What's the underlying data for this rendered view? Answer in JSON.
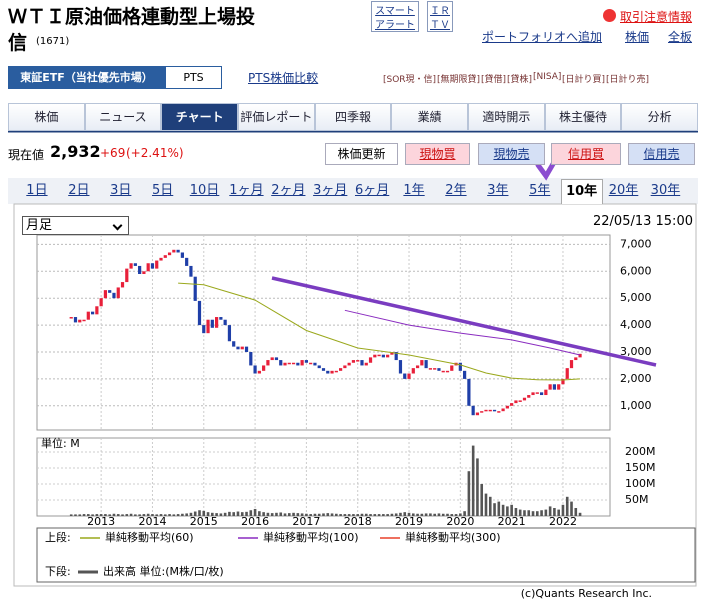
{
  "header": {
    "title_line1": "ＷＴＩ原油価格連動型上場投",
    "title_line2": "信",
    "code": "(1671)",
    "alert_button": [
      "スマート",
      "アラート"
    ],
    "ir_button": [
      "ＩＲ",
      "ＴＶ"
    ],
    "caution_link": "取引注意情報",
    "portfolio_link": "ポートフォリオへ追加",
    "links": [
      "株価",
      "全板"
    ]
  },
  "market_tabs": [
    "東証ETF（当社優先市場）",
    "PTS"
  ],
  "pts_compare": "PTS株価比較",
  "badges": [
    "[SOR現・信]",
    "[無期限貸]",
    "[貸借]",
    "[貸株]",
    "[NISA]",
    "[日計り買]",
    "[日計り売]"
  ],
  "nav_tabs": {
    "items": [
      "株価",
      "ニュース",
      "チャート",
      "評価レポート",
      "四季報",
      "業績",
      "適時開示",
      "株主優待",
      "分析"
    ],
    "active": 2
  },
  "quote": {
    "label": "現在値",
    "price": "2,932",
    "change": "+69",
    "change_pct": "(+2.41%)"
  },
  "buttons": [
    "株価更新",
    "現物買",
    "現物売",
    "信用買",
    "信用売"
  ],
  "periods": {
    "items": [
      "1日",
      "2日",
      "3日",
      "5日",
      "10日",
      "1ヶ月",
      "2ヶ月",
      "3ヶ月",
      "6ヶ月",
      "1年",
      "2年",
      "3年",
      "5年",
      "10年",
      "20年",
      "30年"
    ],
    "active": 13
  },
  "chart_data": {
    "type": "candlestick",
    "select": "月足",
    "timestamp": "22/05/13 15:00",
    "up_color": "#e8203a",
    "down_color": "#1f3fa8",
    "values": [
      4300,
      4100,
      4200,
      4200,
      4500,
      4400,
      4700,
      5000,
      5300,
      5200,
      5000,
      5400,
      5600,
      6100,
      6300,
      6200,
      5900,
      6000,
      6300,
      6100,
      6400,
      6500,
      6600,
      6700,
      6800,
      6700,
      6500,
      6200,
      5800,
      4900,
      4000,
      3700,
      4200,
      3900,
      4300,
      4200,
      4000,
      3400,
      3200,
      3100,
      3200,
      3000,
      2500,
      2200,
      2300,
      2500,
      2700,
      2800,
      2700,
      2500,
      2600,
      2600,
      2600,
      2500,
      2700,
      2600,
      2600,
      2500,
      2400,
      2300,
      2200,
      2300,
      2300,
      2400,
      2500,
      2600,
      2700,
      2700,
      2500,
      2600,
      2800,
      2900,
      2900,
      2800,
      2900,
      3000,
      2700,
      2200,
      2000,
      2200,
      2400,
      2500,
      2700,
      2400,
      2400,
      2400,
      2300,
      2300,
      2300,
      2500,
      2600,
      2300,
      2000,
      1000,
      650,
      750,
      800,
      850,
      850,
      800,
      800,
      900,
      1000,
      1100,
      1200,
      1200,
      1300,
      1400,
      1500,
      1500,
      1400,
      1600,
      1800,
      1600,
      1800,
      2000,
      2400,
      2700,
      2800,
      2932
    ],
    "xlim": [
      -8,
      126
    ],
    "xticks": [
      {
        "value": 7,
        "label": "2013"
      },
      {
        "value": 19,
        "label": "2014"
      },
      {
        "value": 31,
        "label": "2015"
      },
      {
        "value": 43,
        "label": "2016"
      },
      {
        "value": 55,
        "label": "2017"
      },
      {
        "value": 67,
        "label": "2018"
      },
      {
        "value": 79,
        "label": "2019"
      },
      {
        "value": 91,
        "label": "2020"
      },
      {
        "value": 103,
        "label": "2021"
      },
      {
        "value": 115,
        "label": "2022"
      }
    ],
    "ylim": [
      100,
      7350
    ],
    "yticks": [
      {
        "value": 1000,
        "label": "1,000"
      },
      {
        "value": 2000,
        "label": "2,000"
      },
      {
        "value": 3000,
        "label": "3,000"
      },
      {
        "value": 4000,
        "label": "4,000"
      },
      {
        "value": 5000,
        "label": "5,000"
      },
      {
        "value": 6000,
        "label": "6,000"
      },
      {
        "value": 7000,
        "label": "7,000"
      }
    ],
    "grid": true,
    "ma_lines": [
      {
        "name": "単純移動平均(60)",
        "color": "#9aa81c",
        "x": [
          25,
          31,
          43,
          55,
          67,
          79,
          91,
          97,
          103,
          109,
          115,
          119
        ],
        "values": [
          5560,
          5500,
          4930,
          3800,
          3150,
          2890,
          2520,
          2220,
          2030,
          1970,
          1960,
          2000
        ]
      },
      {
        "name": "単純移動平均(100)",
        "color": "#8a2cc0",
        "x": [
          64,
          79,
          91,
          103,
          112,
          119
        ],
        "values": [
          4550,
          4000,
          3700,
          3450,
          3150,
          2890
        ]
      },
      {
        "name": "単純移動平均(300)",
        "color": "#e8402a"
      }
    ],
    "volume": {
      "unit_label": "単位: M",
      "color": "#555555",
      "ylim": [
        0,
        225
      ],
      "yticks": [
        {
          "value": 50,
          "label": "50M"
        },
        {
          "value": 100,
          "label": "100M"
        },
        {
          "value": 150,
          "label": "150M"
        },
        {
          "value": 200,
          "label": "200M"
        }
      ],
      "values": [
        5,
        5,
        5,
        6,
        6,
        5,
        6,
        6,
        6,
        5,
        7,
        6,
        5,
        6,
        7,
        5,
        5,
        6,
        7,
        6,
        5,
        6,
        5,
        6,
        5,
        6,
        7,
        8,
        10,
        14,
        18,
        16,
        12,
        10,
        9,
        8,
        10,
        13,
        12,
        14,
        12,
        13,
        18,
        22,
        15,
        12,
        10,
        9,
        10,
        11,
        8,
        9,
        10,
        9,
        8,
        7,
        6,
        7,
        7,
        8,
        9,
        8,
        7,
        6,
        6,
        6,
        6,
        6,
        7,
        7,
        6,
        6,
        6,
        6,
        6,
        7,
        8,
        10,
        12,
        10,
        8,
        7,
        7,
        8,
        8,
        7,
        8,
        7,
        7,
        6,
        6,
        8,
        15,
        140,
        220,
        180,
        100,
        70,
        60,
        40,
        45,
        35,
        30,
        35,
        25,
        20,
        18,
        18,
        15,
        15,
        18,
        20,
        30,
        25,
        20,
        35,
        60,
        45,
        25,
        10
      ]
    },
    "legend": {
      "upper_label": "上段:",
      "lower_label": "下段:",
      "volume_name": "出来高 単位:(M株/口/枚)"
    },
    "credit": "(c)Quants Research Inc."
  }
}
